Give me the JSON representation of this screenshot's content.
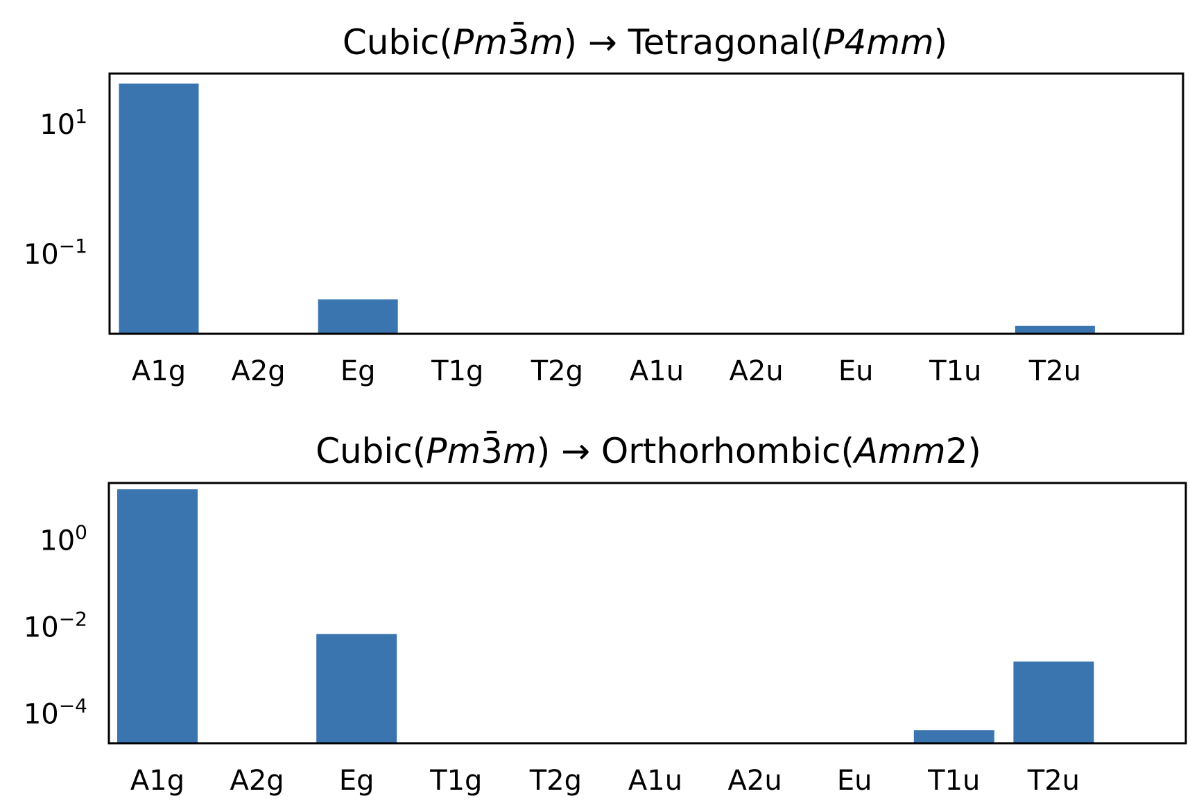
{
  "chart_data": [
    {
      "type": "bar",
      "title": {
        "parts": [
          {
            "t": "Cubic(",
            "i": false
          },
          {
            "t": "Pm",
            "i": true
          },
          {
            "t": "3̄",
            "i": false
          },
          {
            "t": "m",
            "i": true
          },
          {
            "t": ") → Tetragonal(",
            "i": false
          },
          {
            "t": "P4mm",
            "i": true
          },
          {
            "t": ")",
            "i": false
          }
        ]
      },
      "xlabel": "",
      "ylabel": "",
      "yscale": "log",
      "ylim": [
        0.0059,
        60
      ],
      "yticks": [
        {
          "value": 10,
          "mant": "10",
          "exp": "1"
        },
        {
          "value": 0.1,
          "mant": "10",
          "exp": "−1"
        }
      ],
      "categories": [
        "A1g",
        "A2g",
        "Eg",
        "T1g",
        "T2g",
        "A1u",
        "A2u",
        "Eu",
        "T1u",
        "T2u"
      ],
      "values": [
        42,
        null,
        0.02,
        null,
        null,
        null,
        null,
        null,
        null,
        0.0078
      ],
      "color": "#3a75b0",
      "grid": false,
      "legend": "none"
    },
    {
      "type": "bar",
      "title": {
        "parts": [
          {
            "t": "Cubic(",
            "i": false
          },
          {
            "t": "Pm",
            "i": true
          },
          {
            "t": "3̄",
            "i": false
          },
          {
            "t": "m",
            "i": true
          },
          {
            "t": ") → Orthorhombic(",
            "i": false
          },
          {
            "t": "Amm",
            "i": true
          },
          {
            "t": "2)",
            "i": false
          }
        ]
      },
      "xlabel": "",
      "ylabel": "",
      "yscale": "log",
      "ylim": [
        2.1e-05,
        21
      ],
      "yticks": [
        {
          "value": 1,
          "mant": "10",
          "exp": "0"
        },
        {
          "value": 0.01,
          "mant": "10",
          "exp": "−2"
        },
        {
          "value": 0.0001,
          "mant": "10",
          "exp": "−4"
        }
      ],
      "categories": [
        "A1g",
        "A2g",
        "Eg",
        "T1g",
        "T2g",
        "A1u",
        "A2u",
        "Eu",
        "T1u",
        "T2u"
      ],
      "values": [
        15,
        null,
        0.0069,
        null,
        null,
        null,
        null,
        null,
        4.2e-05,
        0.0016
      ],
      "color": "#3a75b0",
      "grid": false,
      "legend": "none"
    }
  ]
}
